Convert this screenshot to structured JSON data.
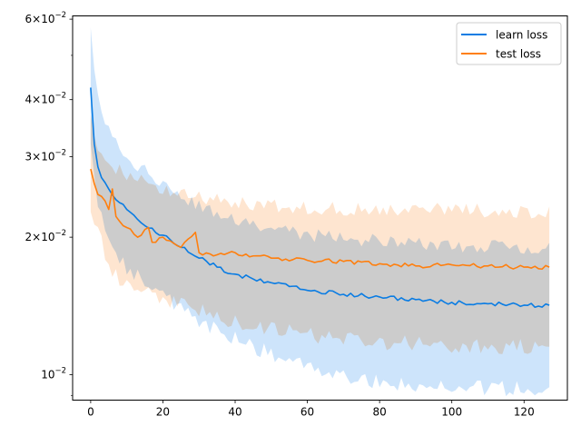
{
  "chart_data": {
    "type": "line",
    "title": "",
    "xlabel": "",
    "ylabel": "",
    "yscale": "log",
    "xlim": [
      -5,
      132
    ],
    "ylim": [
      0.0088,
      0.061
    ],
    "grid": false,
    "legend_position": "top-right",
    "x_ticks": [
      0,
      20,
      40,
      60,
      80,
      100,
      120
    ],
    "x_tick_labels": [
      "0",
      "20",
      "40",
      "60",
      "80",
      "100",
      "120"
    ],
    "y_major_ticks": [
      {
        "value": 0.01,
        "base": "10",
        "exp": "−2"
      },
      {
        "value": 0.02,
        "base": "2×10",
        "exp": "−2"
      },
      {
        "value": 0.03,
        "base": "3×10",
        "exp": "−2"
      },
      {
        "value": 0.04,
        "base": "4×10",
        "exp": "−2"
      },
      {
        "value": 0.06,
        "base": "6×10",
        "exp": "−2"
      }
    ],
    "y_minor_ticks": [
      0.009,
      0.05
    ],
    "series": [
      {
        "name": "learn loss",
        "color": "#0a7ce3",
        "band_color": "#cde4fb",
        "anchors": [
          [
            0,
            0.0425
          ],
          [
            1,
            0.032
          ],
          [
            2,
            0.0285
          ],
          [
            3,
            0.027
          ],
          [
            5,
            0.0255
          ],
          [
            8,
            0.0238
          ],
          [
            10,
            0.023
          ],
          [
            15,
            0.0212
          ],
          [
            20,
            0.0202
          ],
          [
            25,
            0.019
          ],
          [
            30,
            0.018
          ],
          [
            35,
            0.0172
          ],
          [
            40,
            0.0166
          ],
          [
            45,
            0.0162
          ],
          [
            50,
            0.0159
          ],
          [
            55,
            0.0156
          ],
          [
            60,
            0.0153
          ],
          [
            70,
            0.015
          ],
          [
            80,
            0.0148
          ],
          [
            90,
            0.0146
          ],
          [
            100,
            0.0144
          ],
          [
            110,
            0.0143
          ],
          [
            120,
            0.0142
          ],
          [
            127,
            0.0142
          ]
        ],
        "upper_anchors": [
          [
            0,
            0.056
          ],
          [
            2,
            0.04
          ],
          [
            5,
            0.034
          ],
          [
            10,
            0.03
          ],
          [
            20,
            0.026
          ],
          [
            30,
            0.0235
          ],
          [
            40,
            0.022
          ],
          [
            50,
            0.021
          ],
          [
            60,
            0.0203
          ],
          [
            80,
            0.0196
          ],
          [
            100,
            0.0192
          ],
          [
            127,
            0.019
          ]
        ],
        "lower_anchors": [
          [
            0,
            0.031
          ],
          [
            2,
            0.024
          ],
          [
            5,
            0.02
          ],
          [
            10,
            0.017
          ],
          [
            20,
            0.0148
          ],
          [
            30,
            0.013
          ],
          [
            40,
            0.012
          ],
          [
            50,
            0.0111
          ],
          [
            60,
            0.0104
          ],
          [
            70,
            0.01
          ],
          [
            80,
            0.0096
          ],
          [
            100,
            0.0094
          ],
          [
            127,
            0.0093
          ]
        ]
      },
      {
        "name": "test loss",
        "color": "#ff7f0e",
        "band_color": "#fedcc0",
        "anchors": [
          [
            0,
            0.0282
          ],
          [
            1,
            0.0262
          ],
          [
            2,
            0.0248
          ],
          [
            4,
            0.024
          ],
          [
            5,
            0.023
          ],
          [
            6,
            0.0255
          ],
          [
            7,
            0.0222
          ],
          [
            10,
            0.021
          ],
          [
            13,
            0.02
          ],
          [
            16,
            0.021
          ],
          [
            17,
            0.0195
          ],
          [
            20,
            0.02
          ],
          [
            25,
            0.019
          ],
          [
            29,
            0.0205
          ],
          [
            30,
            0.0185
          ],
          [
            35,
            0.0183
          ],
          [
            40,
            0.0185
          ],
          [
            45,
            0.0182
          ],
          [
            50,
            0.018
          ],
          [
            60,
            0.0178
          ],
          [
            70,
            0.0177
          ],
          [
            80,
            0.0175
          ],
          [
            90,
            0.0173
          ],
          [
            100,
            0.0174
          ],
          [
            110,
            0.0173
          ],
          [
            120,
            0.0172
          ],
          [
            127,
            0.0172
          ]
        ],
        "upper_anchors": [
          [
            0,
            0.036
          ],
          [
            2,
            0.031
          ],
          [
            5,
            0.029
          ],
          [
            10,
            0.0275
          ],
          [
            20,
            0.0255
          ],
          [
            30,
            0.0245
          ],
          [
            40,
            0.0238
          ],
          [
            60,
            0.0232
          ],
          [
            80,
            0.023
          ],
          [
            100,
            0.023
          ],
          [
            127,
            0.0226
          ]
        ],
        "lower_anchors": [
          [
            0,
            0.023
          ],
          [
            2,
            0.021
          ],
          [
            4,
            0.0185
          ],
          [
            6,
            0.0168
          ],
          [
            10,
            0.0158
          ],
          [
            15,
            0.0152
          ],
          [
            20,
            0.0147
          ],
          [
            30,
            0.0138
          ],
          [
            40,
            0.013
          ],
          [
            60,
            0.0122
          ],
          [
            80,
            0.0118
          ],
          [
            100,
            0.0116
          ],
          [
            127,
            0.0115
          ]
        ]
      }
    ]
  }
}
